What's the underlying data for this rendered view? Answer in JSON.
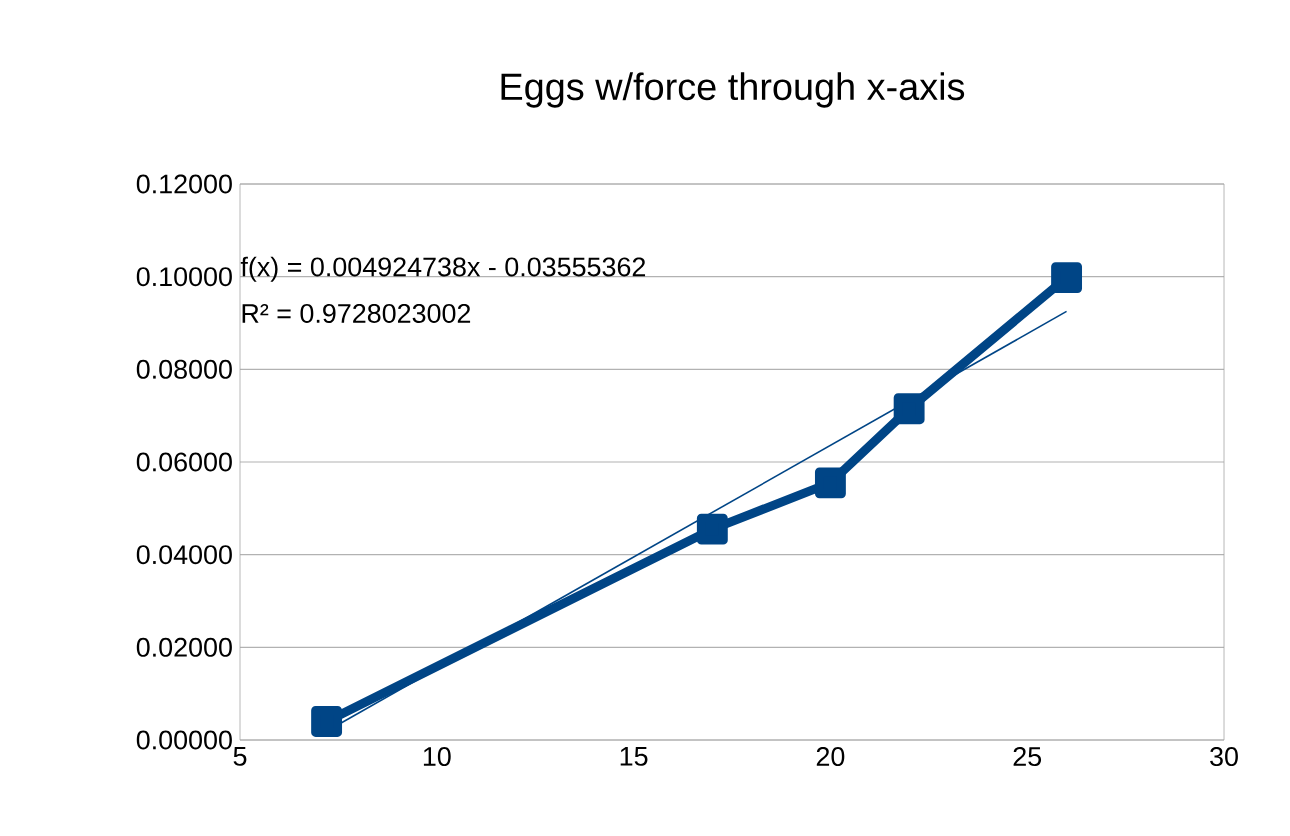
{
  "chart_data": {
    "type": "line",
    "title": "Eggs w/force through x-axis",
    "series": [
      {
        "color": "#004586",
        "marker": "square",
        "x": [
          7.2,
          17,
          20,
          22,
          26
        ],
        "values": [
          0.004,
          0.0455,
          0.0555,
          0.0715,
          0.0998
        ]
      },
      {
        "type": "line",
        "marker": "none",
        "color": "#004586",
        "x": [
          7.2,
          26
        ],
        "values": [
          0.0019,
          0.0925
        ]
      }
    ],
    "annotations": [
      "f(x) = 0.004924738x - 0.03555362",
      "R² = 0.9728023002"
    ],
    "xlim": [
      5,
      30
    ],
    "xticks": [
      5,
      10,
      15,
      20,
      25,
      30
    ],
    "ylim": [
      0,
      0.12
    ],
    "yticks": [
      {
        "value": 0,
        "label": "0.00000"
      },
      {
        "value": 0.02,
        "label": "0.02000"
      },
      {
        "value": 0.04,
        "label": "0.04000"
      },
      {
        "value": 0.06,
        "label": "0.06000"
      },
      {
        "value": 0.08,
        "label": "0.08000"
      },
      {
        "value": 0.1,
        "label": "0.10000"
      },
      {
        "value": 0.12,
        "label": "0.12000"
      }
    ],
    "grid": "y",
    "line_style": "solid"
  }
}
